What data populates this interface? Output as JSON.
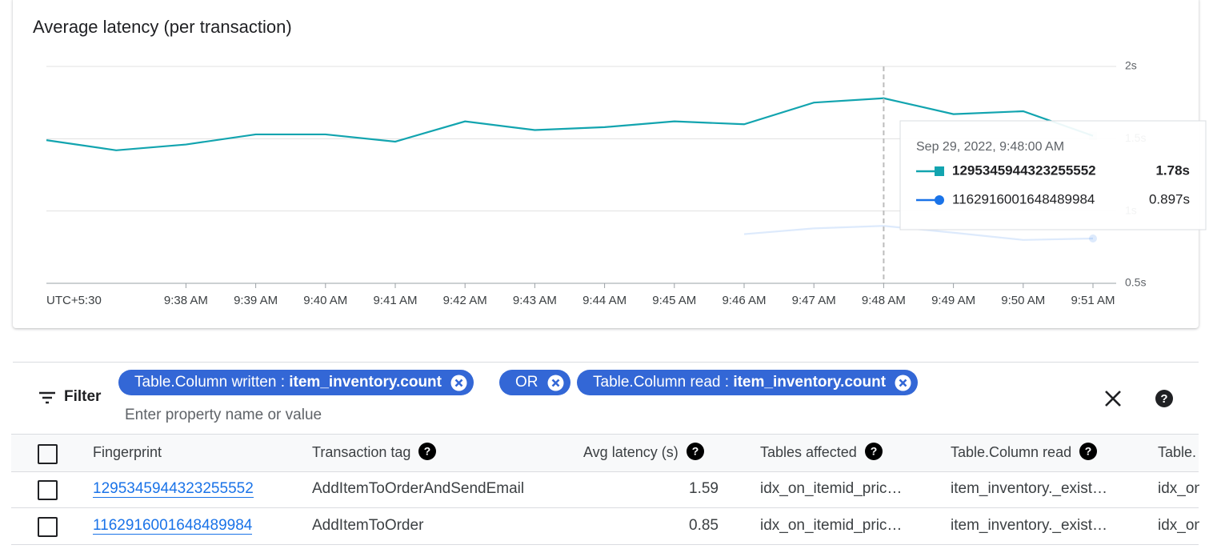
{
  "chart_data": {
    "type": "line",
    "title": "Average latency (per transaction)",
    "categories": [
      "UTC+5:30",
      null,
      "9:38 AM",
      "9:39 AM",
      "9:40 AM",
      "9:41 AM",
      "9:42 AM",
      "9:43 AM",
      "9:44 AM",
      "9:45 AM",
      "9:46 AM",
      "9:47 AM",
      "9:48 AM",
      "9:49 AM",
      "9:50 AM",
      "9:51 AM"
    ],
    "series": [
      {
        "name": "1295345944323255552",
        "color": "#12a4af",
        "values": [
          1.49,
          1.42,
          1.46,
          1.53,
          1.53,
          1.48,
          1.62,
          1.56,
          1.58,
          1.62,
          1.6,
          1.75,
          1.78,
          1.67,
          1.69,
          1.52
        ],
        "value_labels": [
          null,
          null,
          null,
          null,
          null,
          null,
          null,
          null,
          null,
          null,
          null,
          null,
          "1.78s",
          null,
          null,
          null
        ]
      },
      {
        "name": "1162916001648489984",
        "color": "#1a73e8",
        "values": [
          null,
          null,
          null,
          null,
          null,
          null,
          null,
          null,
          null,
          null,
          0.84,
          0.88,
          0.897,
          0.85,
          0.8,
          0.81
        ],
        "value_labels": [
          null,
          null,
          null,
          null,
          null,
          null,
          null,
          null,
          null,
          null,
          null,
          null,
          "0.897s",
          null,
          null,
          null
        ]
      }
    ],
    "ylim": [
      0.5,
      2
    ],
    "yticks": [
      {
        "value": 0.5,
        "label": "0.5s"
      },
      {
        "value": 1,
        "label": "1s"
      },
      {
        "value": 1.5,
        "label": "1.5s"
      },
      {
        "value": 2,
        "label": "2s"
      }
    ],
    "grid": true,
    "tooltip_title": "Sep 29, 2022, 9:48:00 AM"
  },
  "filter": {
    "label": "Filter",
    "chips": [
      {
        "property": "Table.Column written :",
        "value": "item_inventory.count"
      },
      {
        "text": "OR"
      },
      {
        "property": "Table.Column read :",
        "value": "item_inventory.count"
      }
    ],
    "placeholder": "Enter property name or value"
  },
  "table": {
    "headers": [
      "Fingerprint",
      "Transaction tag",
      "Avg latency (s)",
      "Tables affected",
      "Table.Column read",
      "Table."
    ],
    "rows": [
      [
        "1295345944323255552",
        "AddItemToOrderAndSendEmail",
        1.59,
        "idx_on_itemid_pric…",
        "item_inventory._exist…",
        "idx_on"
      ],
      [
        "1162916001648489984",
        "AddItemToOrder",
        0.85,
        "idx_on_itemid_pric…",
        "item_inventory._exist…",
        "idx_on"
      ]
    ]
  }
}
